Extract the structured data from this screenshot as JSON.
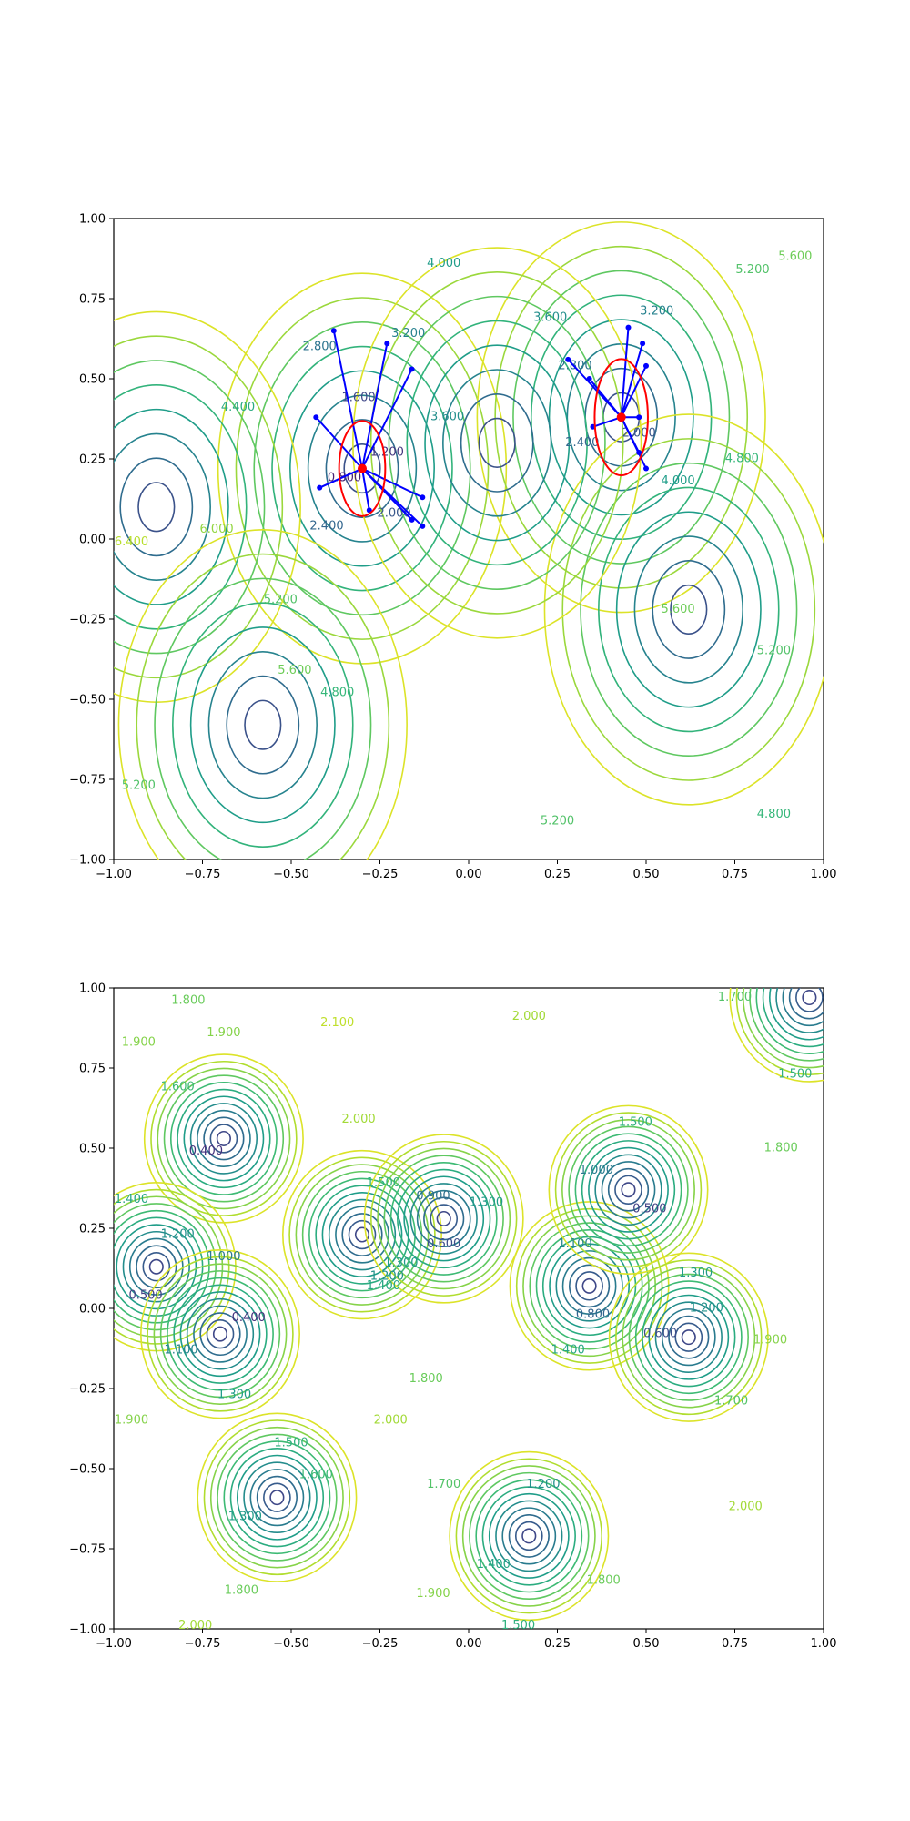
{
  "chart_data": [
    {
      "type": "contour",
      "title": "",
      "xlabel": "",
      "ylabel": "",
      "xlim": [
        -1.0,
        1.0
      ],
      "ylim": [
        -1.0,
        1.0
      ],
      "x_ticks": [
        "−1.00",
        "−0.75",
        "−0.50",
        "−0.25",
        "0.00",
        "0.25",
        "0.50",
        "0.75",
        "1.00"
      ],
      "y_ticks": [
        "−1.00",
        "−0.75",
        "−0.50",
        "−0.25",
        "0.00",
        "0.25",
        "0.50",
        "0.75",
        "1.00"
      ],
      "grid": false,
      "colormap": "viridis",
      "colors": {
        "low": "#31407f",
        "mid": "#1f8c8a",
        "high": "#b6dd2b",
        "marker": "#ff0000",
        "vector": "#0000ff"
      },
      "contour_labels": [
        {
          "text": "1.600",
          "x": -0.31,
          "y": 0.44
        },
        {
          "text": "1.200",
          "x": -0.23,
          "y": 0.27
        },
        {
          "text": "0.800",
          "x": -0.35,
          "y": 0.19
        },
        {
          "text": "2.000",
          "x": -0.21,
          "y": 0.08
        },
        {
          "text": "2.400",
          "x": -0.4,
          "y": 0.04
        },
        {
          "text": "2.800",
          "x": -0.42,
          "y": 0.6
        },
        {
          "text": "3.200",
          "x": -0.17,
          "y": 0.64
        },
        {
          "text": "3.600",
          "x": -0.06,
          "y": 0.38
        },
        {
          "text": "4.000",
          "x": -0.07,
          "y": 0.86
        },
        {
          "text": "4.400",
          "x": -0.65,
          "y": 0.41
        },
        {
          "text": "6.000",
          "x": -0.71,
          "y": 0.03
        },
        {
          "text": "6.400",
          "x": -0.95,
          "y": -0.01
        },
        {
          "text": "5.200",
          "x": -0.53,
          "y": -0.19
        },
        {
          "text": "5.600",
          "x": -0.49,
          "y": -0.41
        },
        {
          "text": "4.800",
          "x": -0.37,
          "y": -0.48
        },
        {
          "text": "5.200",
          "x": -0.93,
          "y": -0.77
        },
        {
          "text": "3.600",
          "x": 0.23,
          "y": 0.69
        },
        {
          "text": "2.800",
          "x": 0.3,
          "y": 0.54
        },
        {
          "text": "2.400",
          "x": 0.32,
          "y": 0.3
        },
        {
          "text": "3.200",
          "x": 0.53,
          "y": 0.71
        },
        {
          "text": "2.000",
          "x": 0.48,
          "y": 0.33
        },
        {
          "text": "4.000",
          "x": 0.59,
          "y": 0.18
        },
        {
          "text": "4.800",
          "x": 0.77,
          "y": 0.25
        },
        {
          "text": "5.200",
          "x": 0.8,
          "y": 0.84
        },
        {
          "text": "5.600",
          "x": 0.92,
          "y": 0.88
        },
        {
          "text": "5.600",
          "x": 0.59,
          "y": -0.22
        },
        {
          "text": "5.200",
          "x": 0.86,
          "y": -0.35
        },
        {
          "text": "5.200",
          "x": 0.25,
          "y": -0.88
        },
        {
          "text": "4.800",
          "x": 0.86,
          "y": -0.86
        }
      ],
      "points": [
        {
          "name": "",
          "x": -0.3,
          "y": 0.22
        },
        {
          "name": "",
          "x": 0.43,
          "y": 0.38
        }
      ],
      "vectors": [
        {
          "from": [
            -0.3,
            0.22
          ],
          "to": [
            [
              -0.38,
              0.65
            ],
            [
              -0.23,
              0.61
            ],
            [
              -0.16,
              0.53
            ],
            [
              -0.43,
              0.38
            ],
            [
              -0.42,
              0.16
            ],
            [
              -0.28,
              0.09
            ],
            [
              -0.13,
              0.13
            ],
            [
              -0.16,
              0.06
            ],
            [
              -0.13,
              0.04
            ]
          ]
        },
        {
          "from": [
            0.43,
            0.38
          ],
          "to": [
            [
              0.45,
              0.66
            ],
            [
              0.49,
              0.61
            ],
            [
              0.5,
              0.54
            ],
            [
              0.28,
              0.56
            ],
            [
              0.34,
              0.5
            ],
            [
              0.35,
              0.35
            ],
            [
              0.48,
              0.38
            ],
            [
              0.48,
              0.27
            ],
            [
              0.5,
              0.22
            ]
          ]
        }
      ]
    },
    {
      "type": "contour",
      "title": "",
      "xlabel": "",
      "ylabel": "",
      "xlim": [
        -1.0,
        1.0
      ],
      "ylim": [
        -1.0,
        1.0
      ],
      "x_ticks": [
        "−1.00",
        "−0.75",
        "−0.50",
        "−0.25",
        "0.00",
        "0.25",
        "0.50",
        "0.75",
        "1.00"
      ],
      "y_ticks": [
        "−1.00",
        "−0.75",
        "−0.50",
        "−0.25",
        "0.00",
        "0.25",
        "0.50",
        "0.75",
        "1.00"
      ],
      "grid": false,
      "colormap": "viridis",
      "contour_labels": [
        {
          "text": "1.800",
          "x": -0.79,
          "y": 0.96
        },
        {
          "text": "1.900",
          "x": -0.93,
          "y": 0.83
        },
        {
          "text": "1.600",
          "x": -0.82,
          "y": 0.69
        },
        {
          "text": "1.400",
          "x": -0.95,
          "y": 0.34
        },
        {
          "text": "1.200",
          "x": -0.82,
          "y": 0.23
        },
        {
          "text": "0.500",
          "x": -0.91,
          "y": 0.04
        },
        {
          "text": "1.000",
          "x": -0.69,
          "y": 0.16
        },
        {
          "text": "0.400",
          "x": -0.62,
          "y": -0.03
        },
        {
          "text": "0.400",
          "x": -0.74,
          "y": 0.49
        },
        {
          "text": "1.100",
          "x": -0.81,
          "y": -0.13
        },
        {
          "text": "1.300",
          "x": -0.66,
          "y": -0.27
        },
        {
          "text": "1.900",
          "x": -0.69,
          "y": 0.86
        },
        {
          "text": "2.100",
          "x": -0.37,
          "y": 0.89
        },
        {
          "text": "2.000",
          "x": -0.31,
          "y": 0.59
        },
        {
          "text": "1.500",
          "x": -0.24,
          "y": 0.39
        },
        {
          "text": "1.300",
          "x": -0.19,
          "y": 0.14
        },
        {
          "text": "1.400",
          "x": -0.24,
          "y": 0.07
        },
        {
          "text": "1.200",
          "x": -0.23,
          "y": 0.1
        },
        {
          "text": "0.900",
          "x": -0.1,
          "y": 0.35
        },
        {
          "text": "1.300",
          "x": 0.05,
          "y": 0.33
        },
        {
          "text": "0.600",
          "x": -0.07,
          "y": 0.2
        },
        {
          "text": "1.500",
          "x": -0.5,
          "y": -0.42
        },
        {
          "text": "1.600",
          "x": -0.43,
          "y": -0.52
        },
        {
          "text": "1.800",
          "x": -0.12,
          "y": -0.22
        },
        {
          "text": "2.000",
          "x": -0.22,
          "y": -0.35
        },
        {
          "text": "1.900",
          "x": -0.95,
          "y": -0.35
        },
        {
          "text": "1.800",
          "x": -0.64,
          "y": -0.88
        },
        {
          "text": "2.000",
          "x": -0.77,
          "y": -0.99
        },
        {
          "text": "1.300",
          "x": -0.63,
          "y": -0.65
        },
        {
          "text": "2.000",
          "x": 0.17,
          "y": 0.91
        },
        {
          "text": "1.500",
          "x": 0.47,
          "y": 0.58
        },
        {
          "text": "1.000",
          "x": 0.36,
          "y": 0.43
        },
        {
          "text": "0.500",
          "x": 0.51,
          "y": 0.31
        },
        {
          "text": "1.100",
          "x": 0.3,
          "y": 0.2
        },
        {
          "text": "0.800",
          "x": 0.35,
          "y": -0.02
        },
        {
          "text": "1.400",
          "x": 0.28,
          "y": -0.13
        },
        {
          "text": "1.300",
          "x": 0.64,
          "y": 0.11
        },
        {
          "text": "1.200",
          "x": 0.67,
          "y": 0.0
        },
        {
          "text": "0.600",
          "x": 0.54,
          "y": -0.08
        },
        {
          "text": "1.700",
          "x": 0.74,
          "y": -0.29
        },
        {
          "text": "1.900",
          "x": 0.85,
          "y": -0.1
        },
        {
          "text": "1.800",
          "x": 0.88,
          "y": 0.5
        },
        {
          "text": "1.700",
          "x": 0.75,
          "y": 0.97
        },
        {
          "text": "1.500",
          "x": 0.92,
          "y": 0.73
        },
        {
          "text": "1.700",
          "x": -0.07,
          "y": -0.55
        },
        {
          "text": "1.200",
          "x": 0.21,
          "y": -0.55
        },
        {
          "text": "1.400",
          "x": 0.07,
          "y": -0.8
        },
        {
          "text": "1.900",
          "x": -0.1,
          "y": -0.89
        },
        {
          "text": "1.800",
          "x": 0.38,
          "y": -0.85
        },
        {
          "text": "1.500",
          "x": 0.14,
          "y": -0.99
        },
        {
          "text": "2.000",
          "x": 0.78,
          "y": -0.62
        }
      ],
      "minima": [
        {
          "x": -0.69,
          "y": 0.53
        },
        {
          "x": -0.88,
          "y": 0.13
        },
        {
          "x": -0.7,
          "y": -0.08
        },
        {
          "x": -0.3,
          "y": 0.23
        },
        {
          "x": -0.07,
          "y": 0.28
        },
        {
          "x": -0.54,
          "y": -0.59
        },
        {
          "x": 0.34,
          "y": 0.07
        },
        {
          "x": 0.45,
          "y": 0.37
        },
        {
          "x": 0.62,
          "y": -0.09
        },
        {
          "x": 0.17,
          "y": -0.71
        },
        {
          "x": 0.96,
          "y": 0.97
        }
      ]
    }
  ]
}
